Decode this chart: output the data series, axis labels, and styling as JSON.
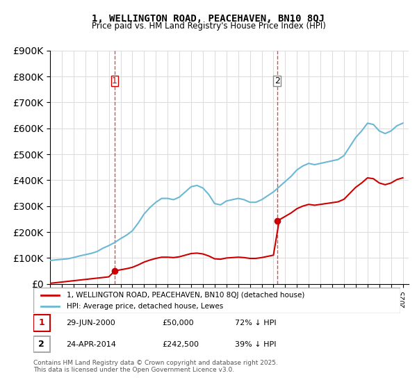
{
  "title": "1, WELLINGTON ROAD, PEACEHAVEN, BN10 8QJ",
  "subtitle": "Price paid vs. HM Land Registry's House Price Index (HPI)",
  "legend_line1": "1, WELLINGTON ROAD, PEACEHAVEN, BN10 8QJ (detached house)",
  "legend_line2": "HPI: Average price, detached house, Lewes",
  "annotation1_label": "1",
  "annotation1_date": "29-JUN-2000",
  "annotation1_price": "£50,000",
  "annotation1_hpi": "72% ↓ HPI",
  "annotation2_label": "2",
  "annotation2_date": "24-APR-2014",
  "annotation2_price": "£242,500",
  "annotation2_hpi": "39% ↓ HPI",
  "footer": "Contains HM Land Registry data © Crown copyright and database right 2025.\nThis data is licensed under the Open Government Licence v3.0.",
  "hpi_color": "#6bb8d4",
  "price_color": "#cc0000",
  "vline_color": "#cc0000",
  "vline_style": "--",
  "background_color": "#ffffff",
  "grid_color": "#dddddd",
  "ylim_max": 900000,
  "sale1_year": 2000.49,
  "sale1_price": 50000,
  "sale2_year": 2014.31,
  "sale2_price": 242500
}
